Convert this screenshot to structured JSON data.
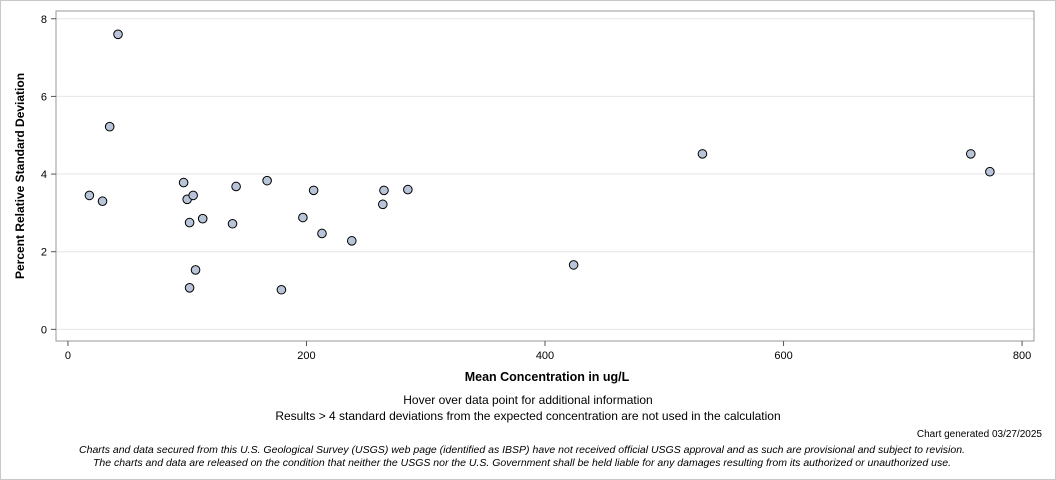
{
  "chart_data": {
    "type": "scatter",
    "xlabel": "Mean Concentration in ug/L",
    "ylabel": "Percent Relative Standard Deviation",
    "xlim": [
      -10,
      810
    ],
    "ylim": [
      -0.3,
      8.2
    ],
    "xticks": [
      0,
      200,
      400,
      600,
      800
    ],
    "yticks": [
      0,
      2,
      4,
      6,
      8
    ],
    "grid": "horizontal",
    "marker_fill": "#b8c4d8",
    "marker_stroke": "#000000",
    "points": [
      {
        "x": 18,
        "y": 3.45
      },
      {
        "x": 29,
        "y": 3.3
      },
      {
        "x": 35,
        "y": 5.22
      },
      {
        "x": 42,
        "y": 7.6
      },
      {
        "x": 97,
        "y": 3.78
      },
      {
        "x": 100,
        "y": 3.35
      },
      {
        "x": 102,
        "y": 2.75
      },
      {
        "x": 102,
        "y": 1.07
      },
      {
        "x": 105,
        "y": 3.45
      },
      {
        "x": 107,
        "y": 1.53
      },
      {
        "x": 113,
        "y": 2.85
      },
      {
        "x": 138,
        "y": 2.72
      },
      {
        "x": 141,
        "y": 3.68
      },
      {
        "x": 167,
        "y": 3.83
      },
      {
        "x": 179,
        "y": 1.02
      },
      {
        "x": 197,
        "y": 2.88
      },
      {
        "x": 206,
        "y": 3.58
      },
      {
        "x": 213,
        "y": 2.47
      },
      {
        "x": 238,
        "y": 2.28
      },
      {
        "x": 264,
        "y": 3.22
      },
      {
        "x": 265,
        "y": 3.58
      },
      {
        "x": 285,
        "y": 3.6
      },
      {
        "x": 424,
        "y": 1.66
      },
      {
        "x": 532,
        "y": 4.52
      },
      {
        "x": 757,
        "y": 4.52
      },
      {
        "x": 773,
        "y": 4.06
      }
    ]
  },
  "notes": {
    "hover": "Hover over data point for additional information",
    "results": "Results > 4 standard deviations from the expected concentration are not used in the calculation",
    "generated": "Chart generated 03/27/2025",
    "disclaimer_1": "Charts and data secured from this U.S. Geological Survey (USGS) web page (identified as IBSP) have not received official USGS approval and as such are provisional and subject to revision.",
    "disclaimer_2": "The charts and data are released on the condition that neither the USGS nor the U.S. Government shall be held liable for any damages resulting from its authorized or unauthorized use."
  }
}
